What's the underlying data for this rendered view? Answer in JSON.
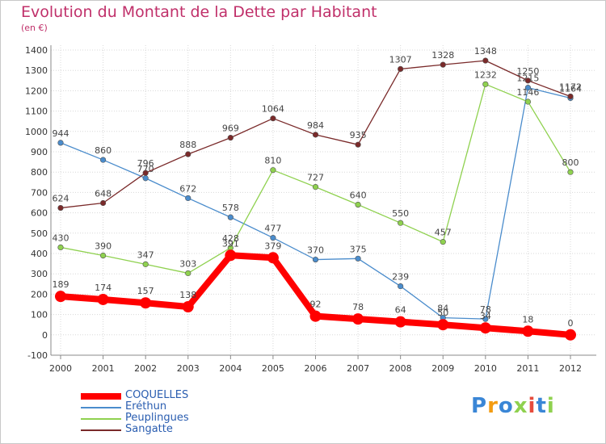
{
  "chart_data": {
    "type": "line",
    "title": "Evolution du Montant de la Dette par Habitant",
    "subtitle": "(en €)",
    "x": [
      "2000",
      "2001",
      "2002",
      "2003",
      "2004",
      "2005",
      "2006",
      "2007",
      "2008",
      "2009",
      "2010",
      "2011",
      "2012"
    ],
    "ylim": [
      -100,
      1400
    ],
    "yticks": [
      -100,
      0,
      100,
      200,
      300,
      400,
      500,
      600,
      700,
      800,
      900,
      1000,
      1100,
      1200,
      1300,
      1400
    ],
    "grid": true,
    "legend_position": "bottom-left",
    "series": [
      {
        "name": "COQUELLES",
        "color": "#ff0000",
        "values": [
          189,
          174,
          157,
          138,
          391,
          379,
          92,
          78,
          64,
          50,
          34,
          18,
          0
        ]
      },
      {
        "name": "Eréthun",
        "color": "#4a8ccc",
        "values": [
          944,
          860,
          770,
          672,
          578,
          477,
          370,
          375,
          239,
          84,
          78,
          1215,
          1164
        ]
      },
      {
        "name": "Peuplingues",
        "color": "#8fd14f",
        "values": [
          430,
          390,
          347,
          303,
          428,
          810,
          727,
          640,
          550,
          457,
          1232,
          1146,
          800
        ]
      },
      {
        "name": "Sangatte",
        "color": "#7a2a2a",
        "values": [
          624,
          648,
          796,
          888,
          969,
          1064,
          984,
          935,
          1307,
          1328,
          1348,
          1250,
          1172
        ]
      }
    ]
  },
  "logo": {
    "text": "Proxiti",
    "colors": [
      "#3a86d6",
      "#f39c12",
      "#3a86d6",
      "#8fd14f",
      "#e74c3c",
      "#3a86d6",
      "#8fd14f"
    ]
  }
}
